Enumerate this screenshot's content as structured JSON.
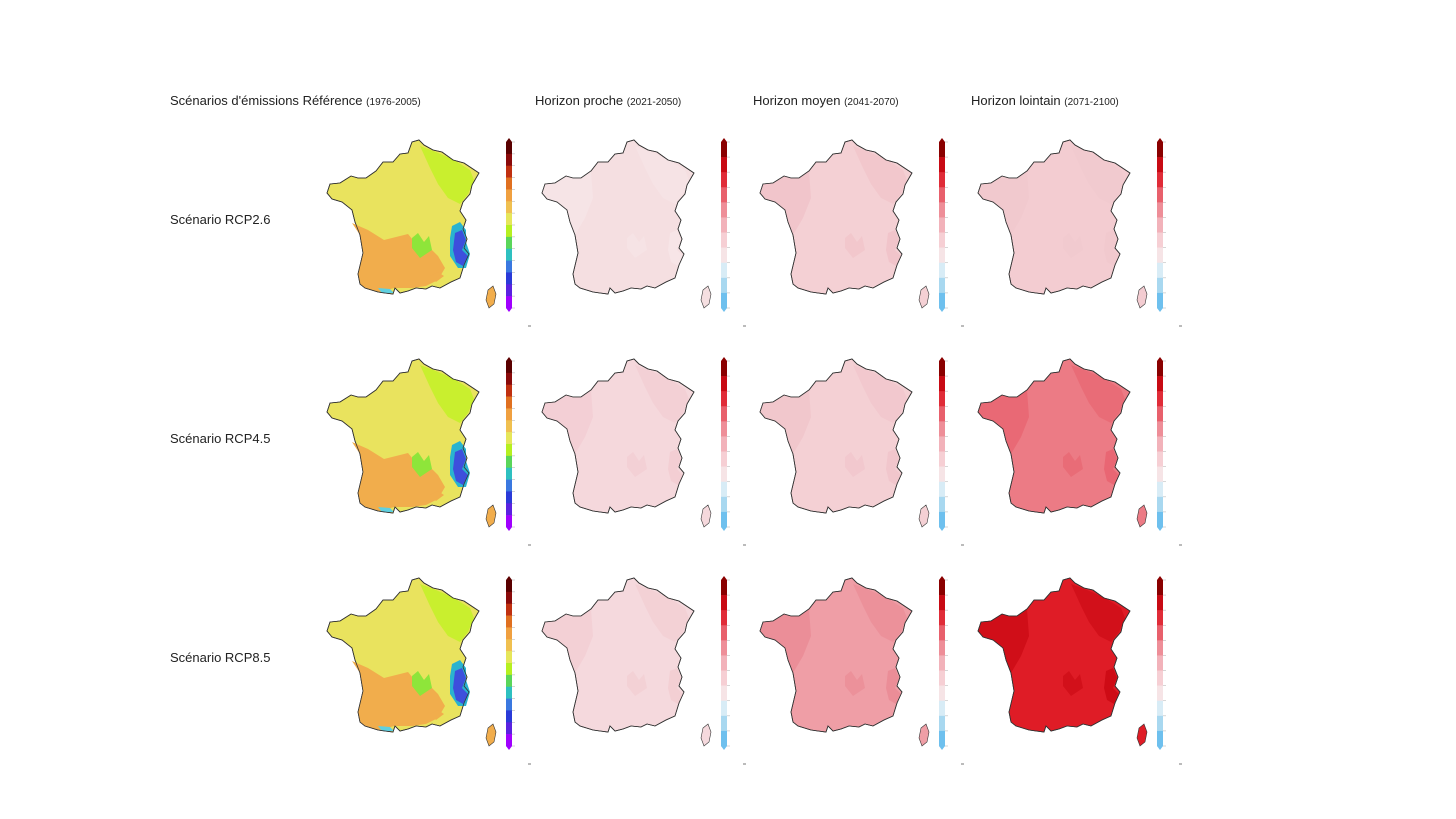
{
  "header": {
    "scenarios_label": "Scénarios d'émissions",
    "reference": {
      "label": "Référence",
      "period": "(1976-2005)"
    },
    "horizons": [
      {
        "label": "Horizon proche",
        "period": "(2021-2050)"
      },
      {
        "label": "Horizon moyen",
        "period": "(2041-2070)"
      },
      {
        "label": "Horizon lointain",
        "period": "(2071-2100)"
      }
    ]
  },
  "rows": [
    {
      "label": "Scénario RCP2.6"
    },
    {
      "label": "Scénario RCP4.5"
    },
    {
      "label": "Scénario RCP8.5"
    }
  ],
  "colors": {
    "reference_scale": [
      "#a000ff",
      "#5a22e0",
      "#2a3ad8",
      "#3a78e0",
      "#2ec0c0",
      "#5ad65a",
      "#b6f020",
      "#e6e65a",
      "#f0c050",
      "#f0a040",
      "#e07020",
      "#c03010",
      "#8a0a0a",
      "#5a0000"
    ],
    "anomaly_scale": [
      "#6ec0ee",
      "#a8d8f0",
      "#d8ecf6",
      "#f6e4e6",
      "#f6cfd4",
      "#f2b2ba",
      "#ee8e98",
      "#e8606c",
      "#e02c38",
      "#c80a14",
      "#8a0000"
    ],
    "reference_regions": {
      "main": "#e9e35e",
      "southwest": "#f1ad4c",
      "northeast": "#c9ef2e",
      "alps": "#3d4fdc",
      "alps_edge": "#2ab3cf",
      "massif_central": "#8ee53a",
      "coast": "#5fd0e0"
    },
    "anomaly_panels": [
      [
        "#f5dfe1",
        "#f4d0d4",
        "#f3ccd1"
      ],
      [
        "#f5d8dc",
        "#f4d0d4",
        "#ec7b85"
      ],
      [
        "#f5d9dd",
        "#ef9ea6",
        "#df1c26"
      ]
    ],
    "anomaly_panels_shade": [
      [
        "#f7e6e8",
        "#f0c1c7",
        "#f0c8cd"
      ],
      [
        "#f2ccd1",
        "#f0c3c9",
        "#e8626e"
      ],
      [
        "#f2ccd1",
        "#ea8893",
        "#c90812"
      ]
    ]
  }
}
